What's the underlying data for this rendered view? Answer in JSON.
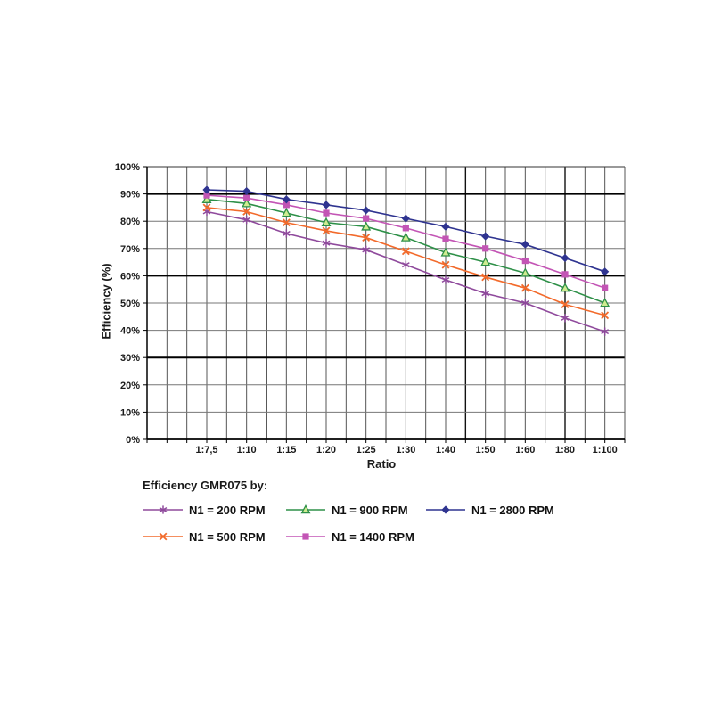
{
  "chart_data": {
    "type": "line",
    "legend_title": "Efficiency GMR075 by:",
    "xlabel": "Ratio",
    "ylabel": "Efficiency (%)",
    "x_categories": [
      "1:7,5",
      "1:10",
      "1:15",
      "1:20",
      "1:25",
      "1:30",
      "1:40",
      "1:50",
      "1:60",
      "1:80",
      "1:100"
    ],
    "y_tick_labels": [
      "0%",
      "10%",
      "20%",
      "30%",
      "40%",
      "50%",
      "60%",
      "70%",
      "80%",
      "90%",
      "100%"
    ],
    "ylim": [
      0,
      100
    ],
    "y_tick_step": 10,
    "bold_y_gridlines": [
      30,
      60,
      90
    ],
    "grid": "both",
    "legend_position": "bottom",
    "series": [
      {
        "name": "N1 = 200 RPM",
        "marker": "asterisk",
        "color": "#8F4A9C",
        "marker_fill": "#8F4A9C",
        "values": [
          83.5,
          80.5,
          75.5,
          72,
          69.5,
          64,
          58.5,
          53.5,
          50,
          44.5,
          39.5
        ]
      },
      {
        "name": "N1 = 500 RPM",
        "marker": "x-cross",
        "color": "#F26A2B",
        "marker_fill": "#F26A2B",
        "values": [
          85,
          83.5,
          79.5,
          76.5,
          74,
          69,
          64,
          59.5,
          55.5,
          49.5,
          45.5
        ]
      },
      {
        "name": "N1 = 900 RPM",
        "marker": "triangle",
        "color": "#2E9048",
        "marker_fill": "#CFEC90",
        "values": [
          88,
          86.5,
          83,
          79.5,
          78,
          74,
          68.5,
          65,
          61,
          55.5,
          50
        ]
      },
      {
        "name": "N1 = 1400 RPM",
        "marker": "square",
        "color": "#C355B5",
        "marker_fill": "#C355B5",
        "values": [
          89.5,
          88.5,
          86,
          83,
          81,
          77.5,
          73.5,
          70,
          65.5,
          60.5,
          55.5
        ]
      },
      {
        "name": "N1 = 2800 RPM",
        "marker": "diamond",
        "color": "#2F3490",
        "marker_fill": "#2F3490",
        "values": [
          91.5,
          91,
          88,
          86,
          84,
          81,
          78,
          74.5,
          71.5,
          66.5,
          61.5
        ]
      }
    ]
  }
}
